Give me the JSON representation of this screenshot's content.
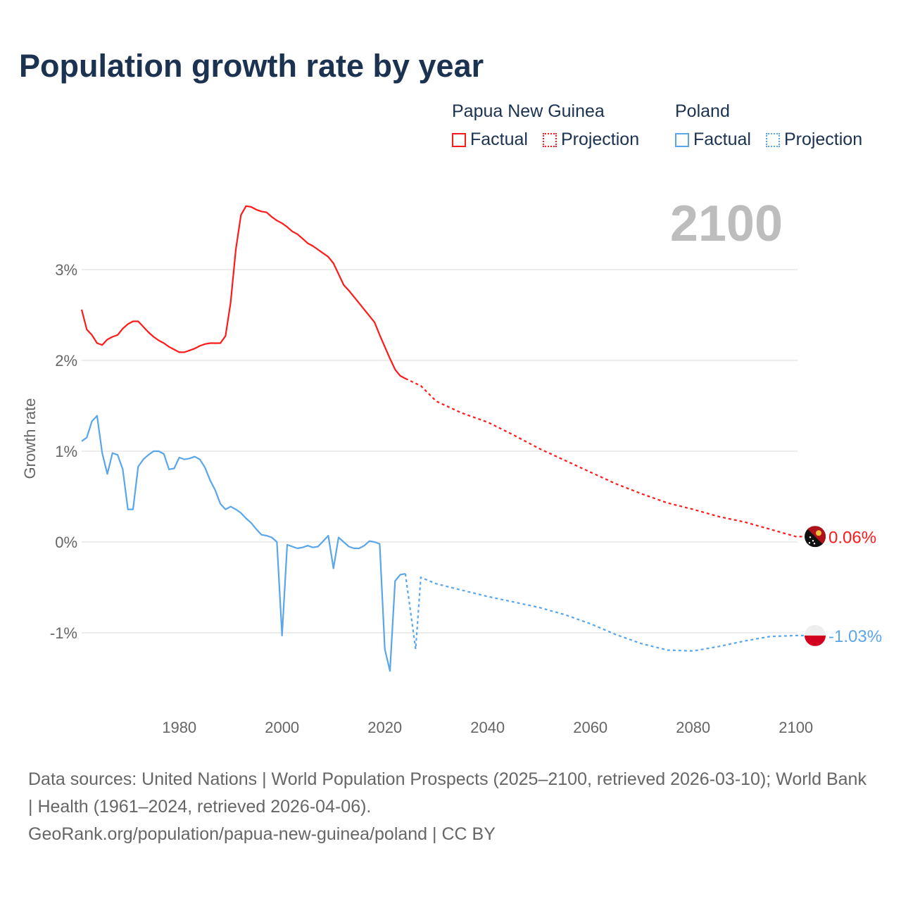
{
  "chart_data": {
    "type": "line",
    "title": "Population growth rate by year",
    "ylabel": "Growth rate",
    "xlabel": "",
    "xlim": [
      1961,
      2100
    ],
    "ylim": [
      -1.7,
      3.8
    ],
    "x_ticks": [
      1980,
      2000,
      2020,
      2040,
      2060,
      2080,
      2100
    ],
    "x_tick_labels": [
      "1980",
      "2000",
      "2020",
      "2040",
      "2060",
      "2080",
      "2100"
    ],
    "y_ticks": [
      -1,
      0,
      1,
      2,
      3
    ],
    "y_tick_labels": [
      "-1%",
      "0%",
      "1%",
      "2%",
      "3%"
    ],
    "grid": true,
    "current_year_label": "2100",
    "legend_placement": "top-right",
    "series": [
      {
        "name": "Papua New Guinea",
        "color": "#ff1a1a",
        "end_label": "0.06%",
        "flag": "papua-new-guinea",
        "factual_start_year": 1961,
        "factual": [
          2.56,
          2.34,
          2.28,
          2.19,
          2.17,
          2.23,
          2.26,
          2.28,
          2.35,
          2.4,
          2.43,
          2.43,
          2.37,
          2.31,
          2.26,
          2.22,
          2.19,
          2.15,
          2.12,
          2.09,
          2.09,
          2.11,
          2.13,
          2.16,
          2.18,
          2.19,
          2.19,
          2.19,
          2.27,
          2.64,
          3.22,
          3.6,
          3.7,
          3.69,
          3.66,
          3.64,
          3.63,
          3.58,
          3.54,
          3.51,
          3.47,
          3.42,
          3.39,
          3.34,
          3.29,
          3.26,
          3.22,
          3.18,
          3.14,
          3.07,
          2.95,
          2.83,
          2.77,
          2.7,
          2.63,
          2.56,
          2.49,
          2.42,
          2.28,
          2.15,
          2.02,
          1.9,
          1.83,
          1.8
        ],
        "projection": [
          [
            2024,
            1.8
          ],
          [
            2027,
            1.72
          ],
          [
            2030,
            1.55
          ],
          [
            2035,
            1.42
          ],
          [
            2040,
            1.32
          ],
          [
            2045,
            1.18
          ],
          [
            2050,
            1.03
          ],
          [
            2055,
            0.9
          ],
          [
            2060,
            0.77
          ],
          [
            2065,
            0.64
          ],
          [
            2070,
            0.53
          ],
          [
            2075,
            0.43
          ],
          [
            2080,
            0.36
          ],
          [
            2085,
            0.28
          ],
          [
            2090,
            0.22
          ],
          [
            2095,
            0.14
          ],
          [
            2100,
            0.06
          ]
        ]
      },
      {
        "name": "Poland",
        "color": "#5aa6ea",
        "end_label": "-1.03%",
        "flag": "poland",
        "factual_start_year": 1961,
        "factual": [
          1.11,
          1.15,
          1.33,
          1.39,
          0.98,
          0.75,
          0.98,
          0.96,
          0.8,
          0.36,
          0.36,
          0.83,
          0.91,
          0.96,
          1.0,
          1.0,
          0.97,
          0.8,
          0.81,
          0.93,
          0.91,
          0.92,
          0.94,
          0.91,
          0.82,
          0.68,
          0.57,
          0.42,
          0.36,
          0.39,
          0.36,
          0.32,
          0.26,
          0.21,
          0.14,
          0.08,
          0.07,
          0.05,
          0.0,
          -1.03,
          -0.03,
          -0.05,
          -0.07,
          -0.06,
          -0.04,
          -0.06,
          -0.05,
          0.01,
          0.07,
          -0.29,
          0.05,
          0.0,
          -0.05,
          -0.07,
          -0.07,
          -0.04,
          0.01,
          0.0,
          -0.02,
          -1.18,
          -1.42,
          -0.43,
          -0.36,
          -0.35
        ],
        "projection": [
          [
            2024,
            -0.35
          ],
          [
            2026,
            -1.18
          ],
          [
            2027,
            -0.39
          ],
          [
            2030,
            -0.46
          ],
          [
            2035,
            -0.53
          ],
          [
            2040,
            -0.6
          ],
          [
            2045,
            -0.66
          ],
          [
            2050,
            -0.72
          ],
          [
            2055,
            -0.8
          ],
          [
            2060,
            -0.9
          ],
          [
            2065,
            -1.02
          ],
          [
            2070,
            -1.12
          ],
          [
            2075,
            -1.19
          ],
          [
            2080,
            -1.2
          ],
          [
            2085,
            -1.15
          ],
          [
            2090,
            -1.09
          ],
          [
            2095,
            -1.04
          ],
          [
            2100,
            -1.03
          ]
        ]
      }
    ]
  },
  "legend": {
    "groups": [
      {
        "name": "Papua New Guinea",
        "factual": "Factual",
        "projection": "Projection"
      },
      {
        "name": "Poland",
        "factual": "Factual",
        "projection": "Projection"
      }
    ]
  },
  "footer": {
    "sources": "Data sources: United Nations | World Population Prospects (2025–2100, retrieved 2026-03-10); World Bank | Health (1961–2024, retrieved 2026-04-06).",
    "link": "GeoRank.org/population/papua-new-guinea/poland | CC BY"
  }
}
